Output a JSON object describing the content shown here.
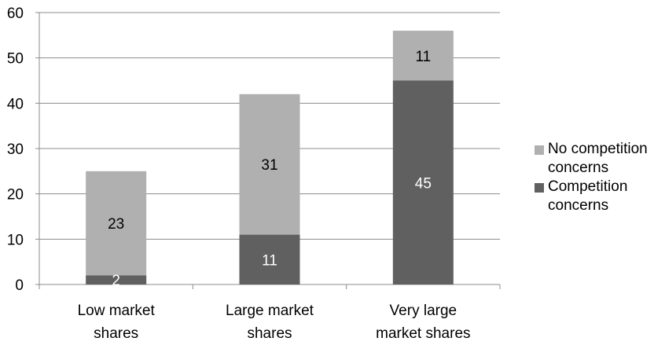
{
  "chart_data": {
    "type": "bar",
    "stacked": true,
    "title": "",
    "xlabel": "",
    "ylabel": "",
    "ylim": [
      0,
      60
    ],
    "yticks": [
      "0",
      "10",
      "20",
      "30",
      "40",
      "50",
      "60"
    ],
    "categories": [
      "Low market shares",
      "Large market shares",
      "Very large market shares"
    ],
    "series": [
      {
        "name": "Competition concerns",
        "values": [
          2,
          11,
          45
        ],
        "color": "#606060",
        "label_color": "#ffffff"
      },
      {
        "name": "No competition concerns",
        "values": [
          23,
          31,
          11
        ],
        "color": "#b0b0b0",
        "label_color": "#000000"
      }
    ],
    "grid": true,
    "legend_position": "right"
  },
  "legend": {
    "items": [
      {
        "name": "No competition concerns",
        "color": "#b0b0b0"
      },
      {
        "name": "Competition concerns",
        "color": "#606060"
      }
    ]
  }
}
